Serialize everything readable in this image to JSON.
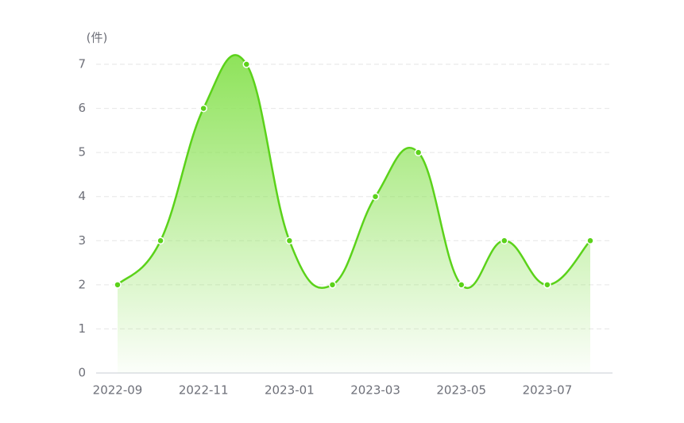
{
  "chart_data": {
    "type": "line",
    "y_unit_label": "(件)",
    "categories": [
      "2022-09",
      null,
      "2022-11",
      null,
      "2023-01",
      null,
      "2023-03",
      null,
      "2023-05",
      null,
      "2023-07",
      null
    ],
    "series": [
      {
        "color": "#5bd21a",
        "values": [
          2,
          3,
          6,
          7,
          3,
          2,
          4,
          5,
          2,
          3,
          2,
          3
        ]
      }
    ],
    "area": true,
    "smooth": true,
    "ylim": [
      0,
      7
    ],
    "yticks": [
      0,
      1,
      2,
      3,
      4,
      5,
      6,
      7
    ],
    "grid": true
  }
}
